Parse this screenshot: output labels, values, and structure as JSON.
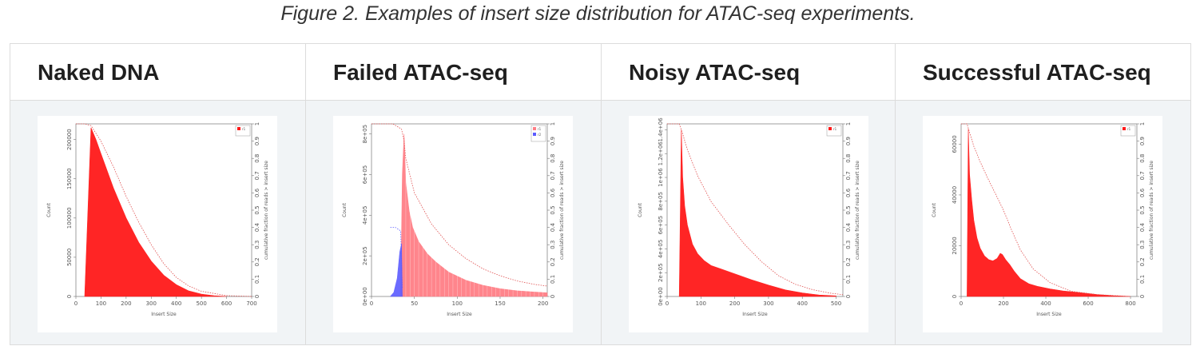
{
  "caption": "Figure 2. Examples of insert size distribution for ATAC-seq experiments.",
  "colors": {
    "hist_red": "#ff1a1a",
    "hist_pink": "#ff7f86",
    "hist_blue": "#5b5bff",
    "cumulative": "#e05050"
  },
  "panels": [
    {
      "title": "Naked DNA"
    },
    {
      "title": "Failed ATAC-seq"
    },
    {
      "title": "Noisy ATAC-seq"
    },
    {
      "title": "Successful ATAC-seq"
    }
  ],
  "chart_data": [
    {
      "type": "area",
      "xlabel": "Insert Size",
      "ylabel": "Count",
      "y2label": "cumulative fraction of reads > insert size",
      "x_ticks": [
        "0",
        "100",
        "200",
        "300",
        "400",
        "500",
        "600",
        "700"
      ],
      "y_ticks": [
        "0",
        "50000",
        "100000",
        "150000",
        "200000"
      ],
      "y2_ticks": [
        "0",
        "0.1",
        "0.2",
        "0.3",
        "0.4",
        "0.5",
        "0.6",
        "0.7",
        "0.8",
        "0.9",
        "1"
      ],
      "xlim": [
        0,
        700
      ],
      "ylim": [
        0,
        220000
      ],
      "series": [
        {
          "x": [
            35,
            60,
            80,
            100,
            150,
            200,
            250,
            300,
            350,
            400,
            450,
            500,
            550,
            600
          ],
          "y": [
            0,
            215000,
            200000,
            182000,
            138000,
            100000,
            69000,
            45000,
            27000,
            15000,
            7000,
            3000,
            900,
            0
          ],
          "color": "#ff1a1a"
        }
      ],
      "cumulative": {
        "x": [
          0,
          35,
          60,
          100,
          150,
          200,
          250,
          300,
          350,
          400,
          450,
          500,
          600,
          700
        ],
        "y": [
          1,
          1,
          0.99,
          0.9,
          0.75,
          0.58,
          0.43,
          0.3,
          0.19,
          0.11,
          0.06,
          0.03,
          0.005,
          0
        ]
      },
      "legend": {
        "position": "top-right",
        "labels": [
          "r1"
        ]
      }
    },
    {
      "type": "bar",
      "xlabel": "Insert Size",
      "ylabel": "Count",
      "y2label": "cumulative fraction of reads > insert size",
      "x_ticks": [
        "0",
        "50",
        "100",
        "150",
        "200"
      ],
      "y_ticks": [
        "0e+00",
        "2e+05",
        "4e+05",
        "6e+05",
        "8e+05"
      ],
      "y2_ticks": [
        "0",
        "0.1",
        "0.2",
        "0.3",
        "0.4",
        "0.5",
        "0.6",
        "0.7",
        "0.8",
        "0.9",
        "1"
      ],
      "xlim": [
        0,
        205
      ],
      "ylim": [
        0,
        850000
      ],
      "series": [
        {
          "x": [
            34,
            36,
            38,
            40,
            44,
            48,
            55,
            65,
            75,
            90,
            110,
            130,
            150,
            170,
            190,
            205
          ],
          "y": [
            0,
            600000,
            800000,
            560000,
            420000,
            340000,
            270000,
            210000,
            170000,
            120000,
            80000,
            55000,
            38000,
            28000,
            22000,
            18000
          ],
          "color": "#ff7f86"
        },
        {
          "x": [
            22,
            26,
            30,
            33,
            35,
            36
          ],
          "y": [
            0,
            20000,
            90000,
            220000,
            260000,
            0
          ],
          "color": "#5b5bff"
        }
      ],
      "cumulative": {
        "x": [
          0,
          25,
          35,
          38,
          40,
          50,
          70,
          90,
          110,
          130,
          150,
          170,
          190,
          205
        ],
        "y": [
          1,
          1,
          0.97,
          0.9,
          0.8,
          0.6,
          0.42,
          0.3,
          0.22,
          0.16,
          0.12,
          0.09,
          0.07,
          0.06
        ]
      },
      "cumulative_blue": {
        "x": [
          22,
          28,
          34,
          36
        ],
        "y": [
          0.4,
          0.4,
          0.38,
          0.05
        ]
      },
      "legend": {
        "position": "top-right",
        "labels": [
          "r1",
          "r2"
        ]
      }
    },
    {
      "type": "area",
      "xlabel": "Insert Size",
      "ylabel": "Count",
      "y2label": "cumulative fraction of reads > insert size",
      "x_ticks": [
        "0",
        "100",
        "200",
        "300",
        "400",
        "500"
      ],
      "y_ticks": [
        "0e+00",
        "2e+05",
        "4e+05",
        "6e+05",
        "8e+05",
        "1e+06",
        "1.2e+06",
        "1.4e+06"
      ],
      "y2_ticks": [
        "0",
        "0.1",
        "0.2",
        "0.3",
        "0.4",
        "0.5",
        "0.6",
        "0.7",
        "0.8",
        "0.9",
        "1"
      ],
      "xlim": [
        0,
        520
      ],
      "ylim": [
        0,
        1450000
      ],
      "series": [
        {
          "x": [
            36,
            42,
            46,
            52,
            60,
            75,
            90,
            110,
            130,
            160,
            200,
            250,
            300,
            350,
            400,
            450,
            500
          ],
          "y": [
            0,
            1400000,
            1000000,
            760000,
            600000,
            440000,
            360000,
            300000,
            260000,
            230000,
            190000,
            140000,
            95000,
            55000,
            30000,
            12000,
            5000
          ],
          "color": "#ff1a1a"
        }
      ],
      "cumulative": {
        "x": [
          0,
          36,
          45,
          60,
          90,
          130,
          180,
          230,
          280,
          330,
          380,
          430,
          480,
          520
        ],
        "y": [
          1,
          1,
          0.95,
          0.85,
          0.7,
          0.55,
          0.42,
          0.3,
          0.2,
          0.12,
          0.07,
          0.04,
          0.02,
          0.01
        ]
      },
      "legend": {
        "position": "top-right",
        "labels": [
          "r1"
        ]
      }
    },
    {
      "type": "area",
      "xlabel": "Insert Size",
      "ylabel": "Count",
      "y2label": "cumulative fraction of reads > insert size",
      "x_ticks": [
        "0",
        "200",
        "400",
        "600",
        "800"
      ],
      "y_ticks": [
        "0",
        "20000",
        "40000",
        "60000"
      ],
      "y2_ticks": [
        "0",
        "0.1",
        "0.2",
        "0.3",
        "0.4",
        "0.5",
        "0.6",
        "0.7",
        "0.8",
        "0.9",
        "1"
      ],
      "xlim": [
        0,
        830
      ],
      "ylim": [
        0,
        68000
      ],
      "series": [
        {
          "x": [
            28,
            34,
            40,
            50,
            60,
            75,
            90,
            110,
            130,
            150,
            170,
            185,
            195,
            210,
            230,
            250,
            280,
            320,
            360,
            420,
            480,
            560,
            640,
            720,
            800
          ],
          "y": [
            0,
            66000,
            48000,
            38000,
            30000,
            23000,
            19000,
            16000,
            14500,
            14000,
            15000,
            17000,
            16500,
            14500,
            12500,
            10000,
            7000,
            5000,
            4000,
            3000,
            2200,
            1500,
            800,
            300,
            0
          ],
          "color": "#ff1a1a"
        }
      ],
      "cumulative": {
        "x": [
          0,
          28,
          40,
          60,
          90,
          120,
          160,
          200,
          240,
          280,
          340,
          420,
          520,
          650,
          800
        ],
        "y": [
          1,
          1,
          0.95,
          0.87,
          0.78,
          0.7,
          0.6,
          0.5,
          0.38,
          0.27,
          0.16,
          0.08,
          0.03,
          0.01,
          0
        ]
      },
      "legend": {
        "position": "top-right",
        "labels": [
          "r1"
        ]
      }
    }
  ]
}
